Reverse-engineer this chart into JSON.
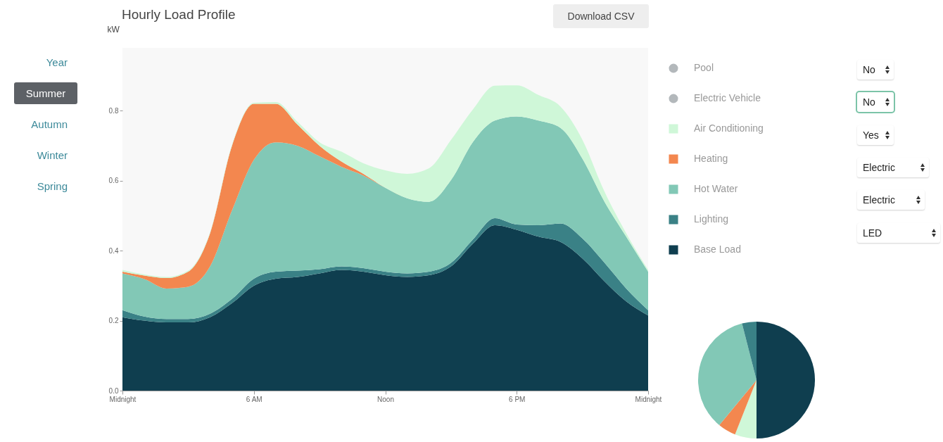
{
  "chart_data": [
    {
      "type": "area",
      "title": "Hourly Load Profile",
      "ylabel": "kW",
      "stacked": true,
      "categories": [
        "Midnight",
        null,
        null,
        null,
        null,
        null,
        "6 AM",
        null,
        null,
        null,
        null,
        null,
        "Noon",
        null,
        null,
        null,
        null,
        null,
        "6 PM",
        null,
        null,
        null,
        null,
        null,
        "Midnight"
      ],
      "ylim": [
        0,
        0.98
      ],
      "yticks": [
        {
          "value": 0,
          "label": "0.0"
        },
        0.2,
        0.4,
        0.6,
        0.8
      ],
      "grid": false,
      "legend": "right",
      "series": [
        {
          "name": "Base Load",
          "color": "#0f3e4f",
          "values": [
            0.21,
            0.2,
            0.195,
            0.195,
            0.21,
            0.25,
            0.3,
            0.32,
            0.325,
            0.335,
            0.345,
            0.34,
            0.33,
            0.325,
            0.33,
            0.355,
            0.42,
            0.473,
            0.46,
            0.44,
            0.425,
            0.378,
            0.313,
            0.255,
            0.215
          ]
        },
        {
          "name": "Lighting",
          "color": "#3a8186",
          "values": [
            0.02,
            0.012,
            0.01,
            0.01,
            0.01,
            0.012,
            0.02,
            0.02,
            0.018,
            0.012,
            0.01,
            0.01,
            0.01,
            0.01,
            0.01,
            0.01,
            0.012,
            0.02,
            0.015,
            0.033,
            0.053,
            0.057,
            0.053,
            0.037,
            0.015
          ]
        },
        {
          "name": "Hot Water",
          "color": "#82c8b6",
          "values": [
            0.105,
            0.107,
            0.087,
            0.092,
            0.135,
            0.253,
            0.34,
            0.37,
            0.357,
            0.323,
            0.285,
            0.265,
            0.24,
            0.215,
            0.2,
            0.237,
            0.279,
            0.279,
            0.309,
            0.299,
            0.273,
            0.228,
            0.175,
            0.148,
            0.11
          ]
        },
        {
          "name": "Heating",
          "color": "#f3874f",
          "values": [
            0.005,
            0.01,
            0.03,
            0.043,
            0.095,
            0.185,
            0.16,
            0.11,
            0.06,
            0.03,
            0.015,
            0.005,
            0,
            0,
            0,
            0,
            0,
            0,
            0,
            0,
            0,
            0,
            0,
            0,
            0
          ]
        },
        {
          "name": "Air Conditioning",
          "color": "#cff7d8",
          "values": [
            0.005,
            0.003,
            0.003,
            0.003,
            0.003,
            0.003,
            0.003,
            0.005,
            0.008,
            0.01,
            0.028,
            0.03,
            0.05,
            0.07,
            0.096,
            0.115,
            0.093,
            0.1,
            0.089,
            0.073,
            0.061,
            0.054,
            0.029,
            0.01,
            0.005
          ]
        },
        {
          "name": "Electric Vehicle",
          "color": "#b3b8bb",
          "values": [
            null,
            null,
            null,
            null,
            null,
            null,
            null,
            null,
            null,
            null,
            null,
            null,
            null,
            null,
            null,
            null,
            null,
            null,
            null,
            null,
            null,
            null,
            null,
            null,
            null
          ]
        },
        {
          "name": "Pool",
          "color": "#b3b8bb",
          "values": [
            null,
            null,
            null,
            null,
            null,
            null,
            null,
            null,
            null,
            null,
            null,
            null,
            null,
            null,
            null,
            null,
            null,
            null,
            null,
            null,
            null,
            null,
            null,
            null,
            null
          ]
        }
      ],
      "annotations": [
        "Year",
        "Summer",
        "Autumn",
        "Winter",
        "Spring",
        "Download CSV",
        "No",
        "No",
        "Yes",
        "Electric",
        "Electric",
        "LED"
      ]
    },
    {
      "type": "pie",
      "categories": [
        null,
        null,
        null,
        null,
        null
      ],
      "values": [
        50,
        6,
        5,
        35,
        4
      ],
      "colors": [
        "#0f3e4f",
        "#cff7d8",
        "#f3874f",
        "#82c8b6",
        "#3a8186"
      ]
    }
  ]
}
